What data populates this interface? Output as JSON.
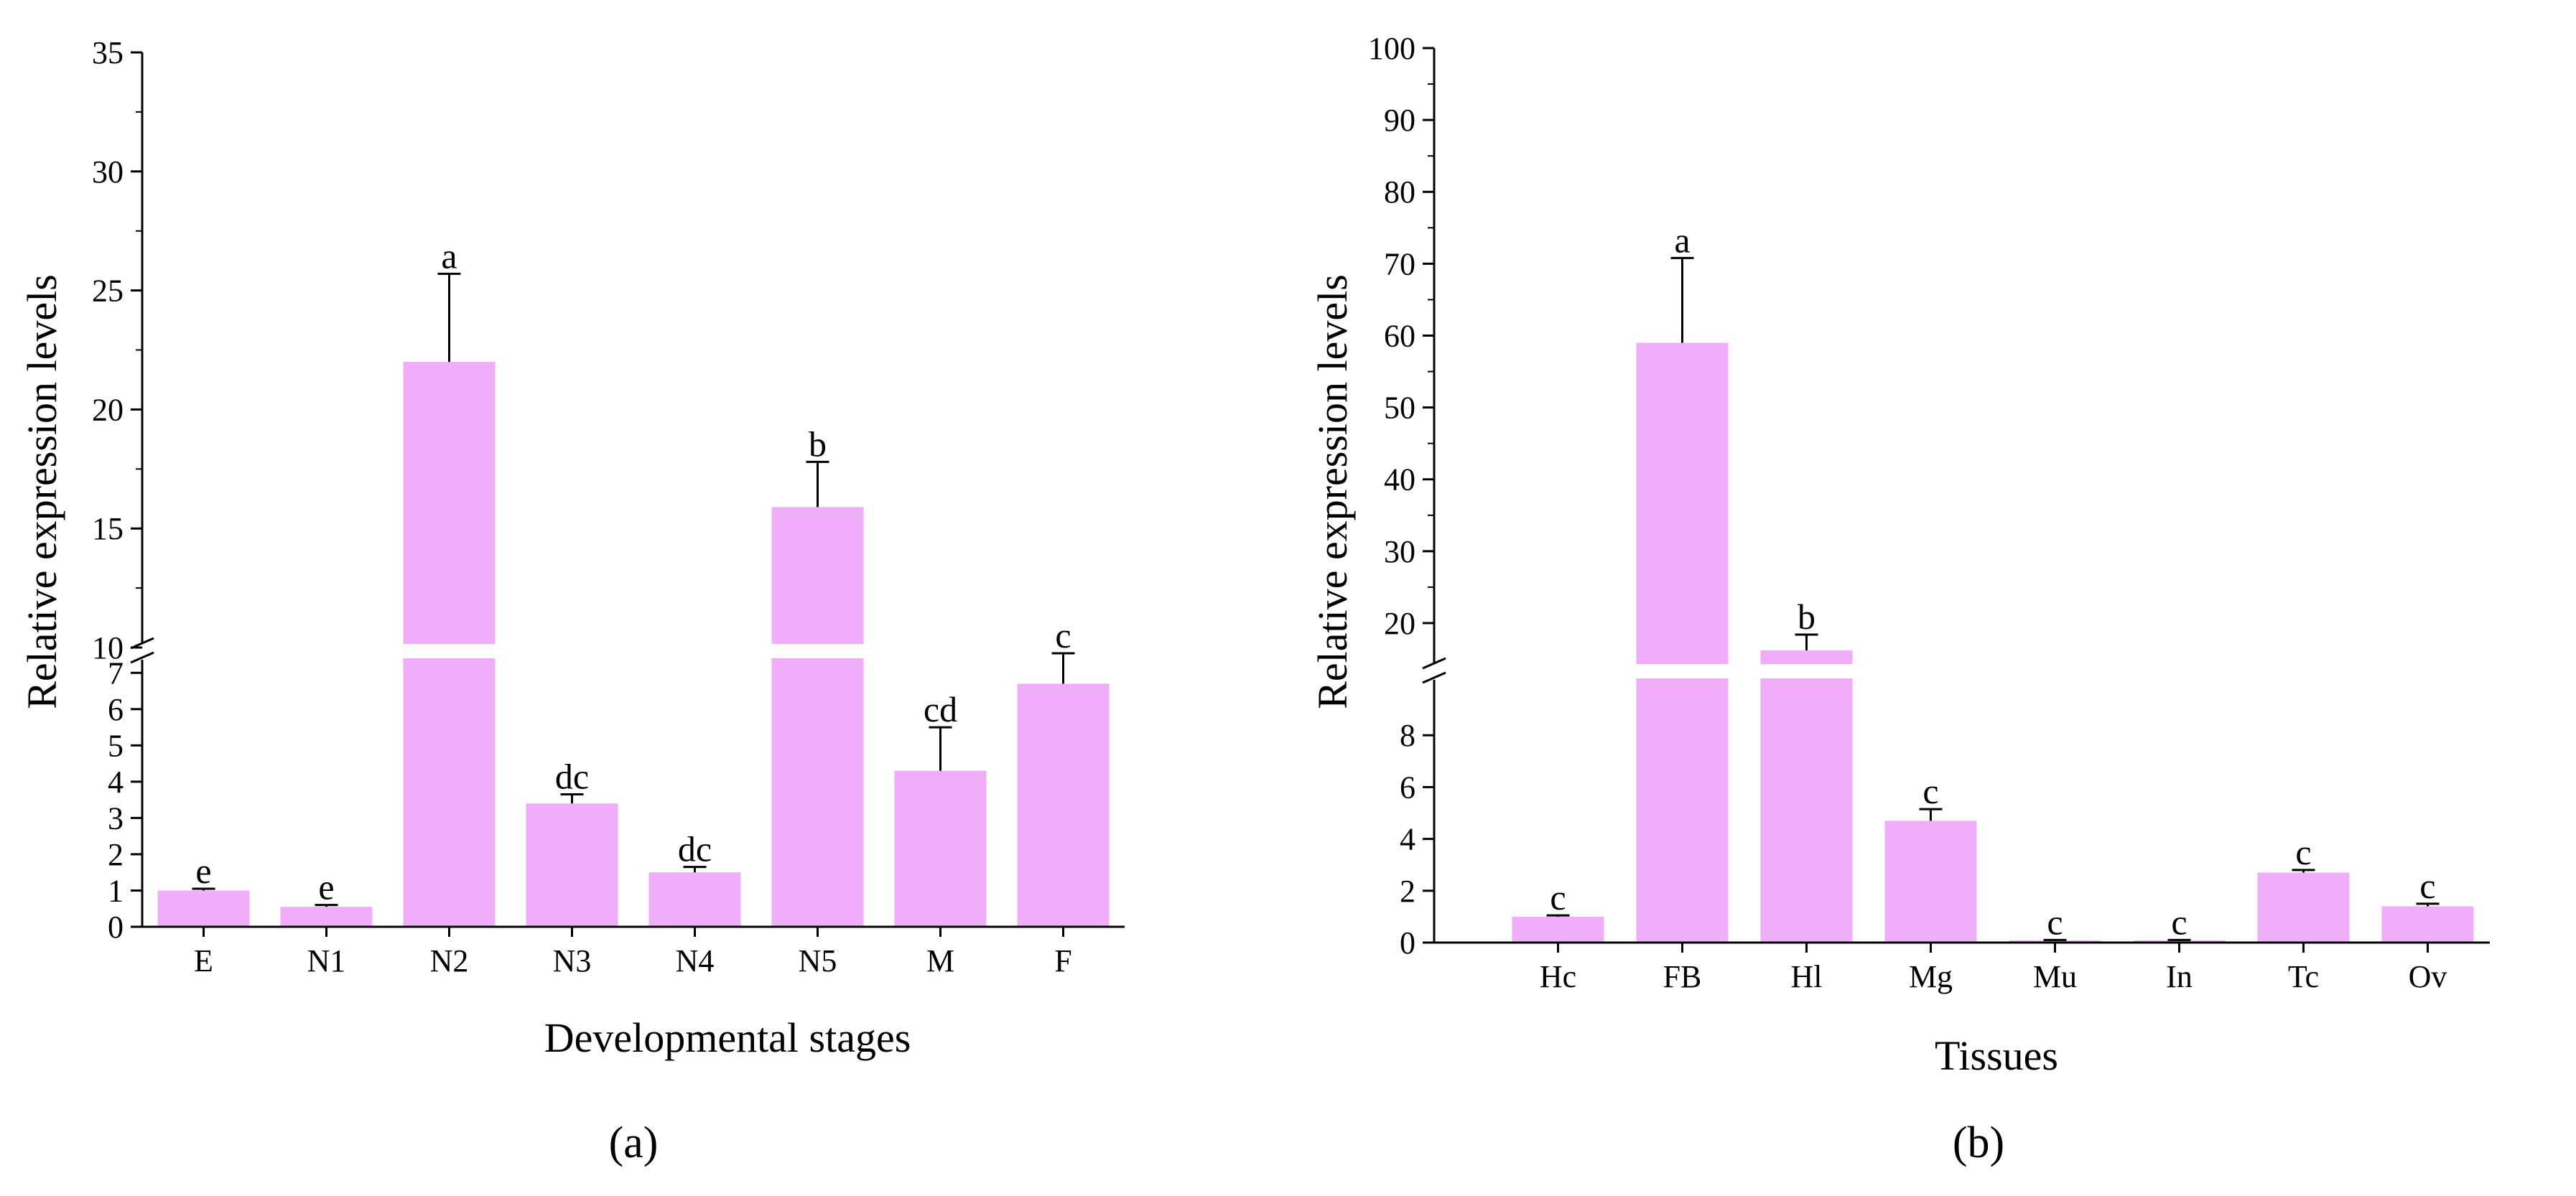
{
  "bar_color": "#F0AEFA",
  "axis_color": "#000000",
  "chart_data": [
    {
      "type": "bar",
      "panel": "a",
      "panel_label": "(a)",
      "xlabel": "Developmental stages",
      "ylabel": "Relative expression levels",
      "categories": [
        "E",
        "N1",
        "N2",
        "N3",
        "N4",
        "N5",
        "M",
        "F"
      ],
      "values": [
        1.0,
        0.55,
        22.0,
        3.4,
        1.5,
        15.9,
        4.3,
        6.7
      ],
      "errors": [
        0.05,
        0.05,
        3.7,
        0.25,
        0.15,
        1.9,
        1.2,
        1.3
      ],
      "significance": [
        "e",
        "e",
        "a",
        "dc",
        "dc",
        "b",
        "cd",
        "c"
      ],
      "axis_break": {
        "lower": [
          0,
          7.5
        ],
        "upper": [
          10,
          35
        ]
      },
      "yticks_lower": [
        0,
        1,
        2,
        3,
        4,
        5,
        6,
        7
      ],
      "yticks_upper": [
        10,
        15,
        20,
        25,
        30,
        35
      ],
      "ylim": [
        0,
        35
      ]
    },
    {
      "type": "bar",
      "panel": "b",
      "panel_label": "(b)",
      "xlabel": "Tissues",
      "ylabel": "Relative expression levels",
      "categories": [
        "Hc",
        "FB",
        "Hl",
        "Mg",
        "Mu",
        "In",
        "Tc",
        "Ov"
      ],
      "values": [
        1.0,
        59.0,
        16.2,
        4.7,
        0.08,
        0.08,
        2.7,
        1.4
      ],
      "errors": [
        0.05,
        11.8,
        2.2,
        0.45,
        0.02,
        0.02,
        0.1,
        0.1
      ],
      "significance": [
        "c",
        "a",
        "b",
        "c",
        "c",
        "c",
        "c",
        "c"
      ],
      "axis_break": {
        "lower": [
          0,
          10
        ],
        "upper": [
          15,
          100
        ]
      },
      "yticks_lower": [
        0,
        2,
        4,
        6,
        8
      ],
      "yticks_upper": [
        20,
        30,
        40,
        50,
        60,
        70,
        80,
        90,
        100
      ],
      "ylim": [
        0,
        100
      ]
    }
  ]
}
